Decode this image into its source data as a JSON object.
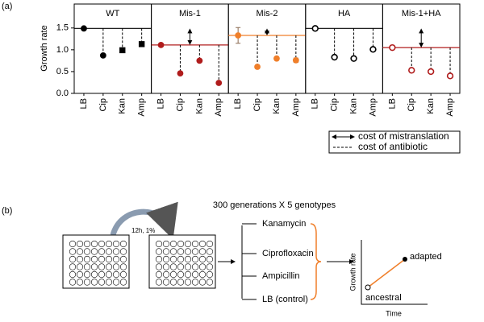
{
  "labels": {
    "a": "(a)",
    "b": "(b)"
  },
  "chart_data": [
    {
      "type": "dot",
      "title": "WT",
      "ylabel": "Growth rate",
      "categories": [
        "LB",
        "Cip",
        "Kan",
        "Amp"
      ],
      "values": [
        1.49,
        0.87,
        0.99,
        1.13
      ],
      "markers": [
        "circle",
        "circle",
        "square",
        "square"
      ],
      "filled": true,
      "color": "#000000",
      "ylim": [
        0,
        2.05
      ],
      "yticks": [
        {
          "value": 0,
          "label": "0.0"
        },
        {
          "value": 0.5,
          "label": "0.5"
        },
        {
          "value": 1,
          "label": "1.0"
        },
        {
          "value": 1.5,
          "label": "1.5"
        }
      ]
    },
    {
      "type": "dot",
      "title": "Mis-1",
      "categories": [
        "LB",
        "Cip",
        "Kan",
        "Amp"
      ],
      "values": [
        1.11,
        0.46,
        0.75,
        0.24
      ],
      "markers": [
        "circle",
        "circle",
        "circle",
        "circle"
      ],
      "filled": true,
      "color": "#b01c1c",
      "ylim": [
        0,
        2.05
      ]
    },
    {
      "type": "dot",
      "title": "Mis-2",
      "categories": [
        "LB",
        "Cip",
        "Kan",
        "Amp"
      ],
      "values": [
        1.33,
        0.61,
        0.8,
        0.76
      ],
      "errors": [
        0.18,
        0.04,
        0.04,
        0.05
      ],
      "markers": [
        "circle",
        "circle",
        "circle",
        "circle"
      ],
      "filled": true,
      "color": "#f07f2a",
      "ylim": [
        0,
        2.05
      ]
    },
    {
      "type": "dot",
      "title": "HA",
      "categories": [
        "LB",
        "Cip",
        "Kan",
        "Amp"
      ],
      "values": [
        1.49,
        0.83,
        0.8,
        1.01
      ],
      "markers": [
        "circle",
        "circle",
        "circle",
        "circle"
      ],
      "filled": false,
      "color": "#000000",
      "ylim": [
        0,
        2.05
      ]
    },
    {
      "type": "dot",
      "title": "Mis-1+HA",
      "categories": [
        "LB",
        "Cip",
        "Kan",
        "Amp"
      ],
      "values": [
        1.05,
        0.53,
        0.5,
        0.4
      ],
      "markers": [
        "circle",
        "circle",
        "circle",
        "circle"
      ],
      "filled": false,
      "color": "#b01c1c",
      "ylim": [
        0,
        2.05
      ]
    }
  ],
  "legend": {
    "arrow": "cost of mistranslation",
    "dashed": "cost of antibiotic"
  },
  "diagram": {
    "title": "300 generations X 5 genotypes",
    "transfer": "12h, 1%",
    "media": [
      "Kanamycin",
      "Ciprofloxacin",
      "Ampicillin",
      "LB (control)"
    ],
    "inset": {
      "ylabel": "Growth rate",
      "xlabel": "Time",
      "end": "adapted",
      "start": "ancestral"
    }
  }
}
